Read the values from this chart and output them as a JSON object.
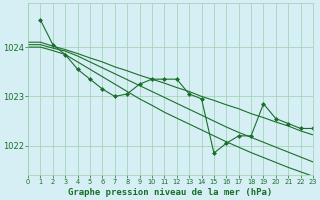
{
  "background_color": "#d6eff5",
  "grid_color": "#9ecfb0",
  "line_color": "#1a6e2a",
  "marker_color": "#1a6e2a",
  "xlabel": "Graphe pression niveau de la mer (hPa)",
  "xlabel_fontsize": 6.5,
  "ylabel_ticks": [
    1022,
    1023,
    1024
  ],
  "ylabel_fontsize": 6.0,
  "xtick_fontsize": 4.8,
  "xlim": [
    0,
    23
  ],
  "ylim": [
    1021.4,
    1024.9
  ],
  "series": [
    [
      1.0,
      1024.55,
      2.0,
      1024.05,
      3.0,
      1023.85,
      4.0,
      1023.55,
      5.0,
      1023.35,
      6.0,
      1023.15,
      7.0,
      1023.0,
      8.0,
      1023.05,
      9.0,
      1023.25,
      10.0,
      1023.35,
      11.0,
      1023.35,
      12.0,
      1023.35,
      13.0,
      1023.05,
      14.0,
      1022.95,
      15.0,
      1021.85,
      16.0,
      1022.05,
      17.0,
      1022.2,
      18.0,
      1022.2,
      19.0,
      1022.85,
      20.0,
      1022.55,
      21.0,
      1022.45,
      22.0,
      1022.35,
      23.0,
      1022.35
    ],
    [
      0.0,
      1024.05,
      1.0,
      1024.05,
      2.0,
      1023.98,
      3.0,
      1023.92,
      4.0,
      1023.82,
      5.0,
      1023.7,
      6.0,
      1023.58,
      7.0,
      1023.46,
      8.0,
      1023.34,
      9.0,
      1023.22,
      10.0,
      1023.1,
      11.0,
      1022.98,
      12.0,
      1022.86,
      13.0,
      1022.74,
      14.0,
      1022.62,
      15.0,
      1022.5,
      16.0,
      1022.38,
      17.0,
      1022.27,
      18.0,
      1022.17,
      19.0,
      1022.07,
      20.0,
      1021.97,
      21.0,
      1021.87,
      22.0,
      1021.77,
      23.0,
      1021.67
    ],
    [
      0.0,
      1024.1,
      1.0,
      1024.1,
      2.0,
      1024.02,
      3.0,
      1023.95,
      4.0,
      1023.87,
      5.0,
      1023.78,
      6.0,
      1023.7,
      7.0,
      1023.6,
      8.0,
      1023.52,
      9.0,
      1023.43,
      10.0,
      1023.35,
      11.0,
      1023.27,
      12.0,
      1023.18,
      13.0,
      1023.1,
      14.0,
      1023.0,
      15.0,
      1022.92,
      16.0,
      1022.83,
      17.0,
      1022.75,
      18.0,
      1022.65,
      19.0,
      1022.57,
      20.0,
      1022.48,
      21.0,
      1022.4,
      22.0,
      1022.3,
      23.0,
      1022.22
    ],
    [
      0.0,
      1024.0,
      1.0,
      1024.0,
      2.0,
      1023.93,
      3.0,
      1023.85,
      4.0,
      1023.7,
      5.0,
      1023.55,
      6.0,
      1023.4,
      7.0,
      1023.25,
      8.0,
      1023.1,
      9.0,
      1022.95,
      10.0,
      1022.82,
      11.0,
      1022.68,
      12.0,
      1022.56,
      13.0,
      1022.44,
      14.0,
      1022.32,
      15.0,
      1022.2,
      16.0,
      1022.08,
      17.0,
      1021.97,
      18.0,
      1021.86,
      19.0,
      1021.76,
      20.0,
      1021.66,
      21.0,
      1021.56,
      22.0,
      1021.47,
      23.0,
      1021.38
    ]
  ],
  "series_has_markers": [
    true,
    false,
    false,
    false
  ],
  "xtick_labels": [
    "0",
    "1",
    "2",
    "3",
    "4",
    "5",
    "6",
    "7",
    "8",
    "9",
    "10",
    "11",
    "12",
    "13",
    "14",
    "15",
    "16",
    "17",
    "18",
    "19",
    "20",
    "21",
    "22",
    "23"
  ]
}
